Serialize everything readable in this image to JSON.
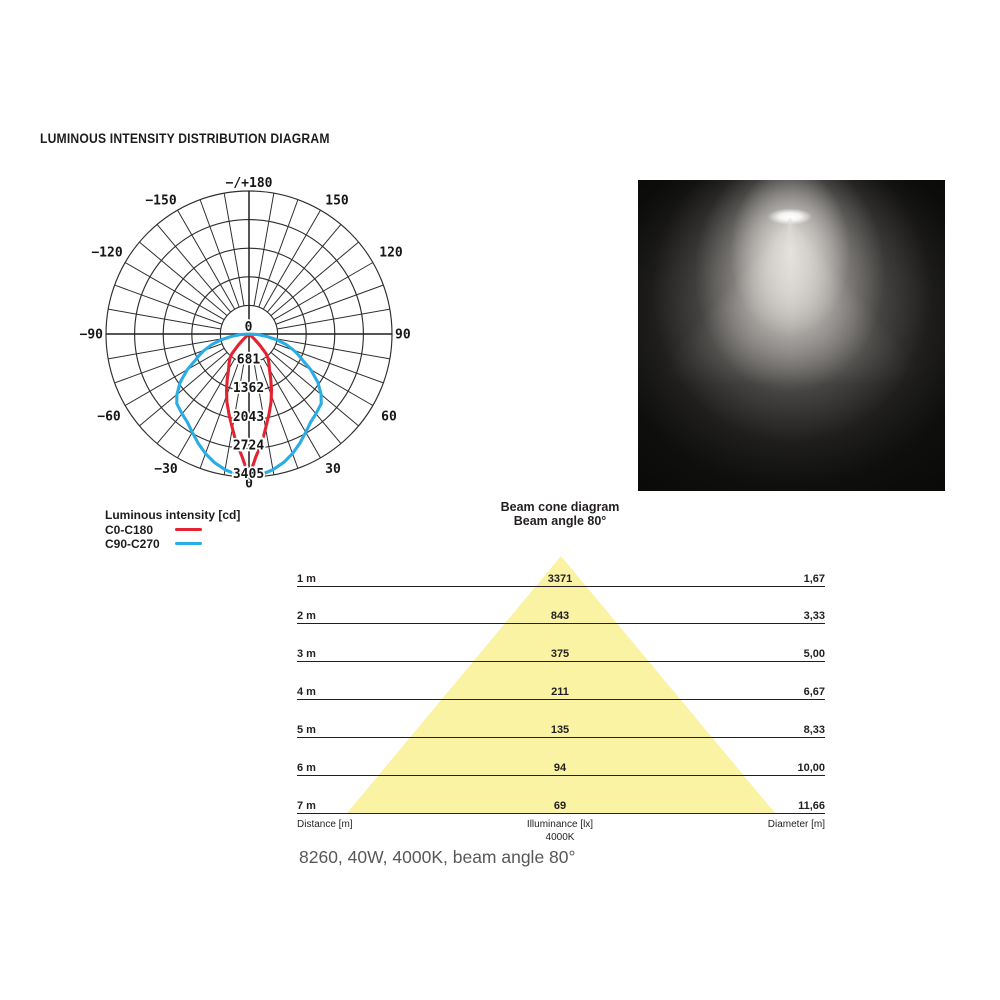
{
  "page": {
    "title": "LUMINOUS INTENSITY DISTRIBUTION DIAGRAM",
    "caption": "8260, 40W, 4000K, beam angle 80°"
  },
  "colors": {
    "red": "#e32330",
    "blue": "#2aade4",
    "cone_yellow": "#faf3a4",
    "grid": "#2e2e2e",
    "text": "#231f20",
    "caption_gray": "#57585a"
  },
  "legend": {
    "title": "Luminous intensity [cd]",
    "items": [
      {
        "label": "C0-C180",
        "color": "#e32330"
      },
      {
        "label": "C90-C270",
        "color": "#2aade4"
      }
    ]
  },
  "photo": {
    "name": "luminaire-beam-photo"
  },
  "chart_data": [
    {
      "type": "polar",
      "title": "LUMINOUS INTENSITY DISTRIBUTION DIAGRAM",
      "units": "cd",
      "max_value": 3405,
      "ring_values": [
        0,
        681,
        1362,
        2043,
        2724,
        3405
      ],
      "angle_step_deg": 10,
      "angle_labels": [
        {
          "angle": 180,
          "text": "−/+180"
        },
        {
          "angle": -150,
          "text": "−150"
        },
        {
          "angle": 150,
          "text": "150"
        },
        {
          "angle": -120,
          "text": "−120"
        },
        {
          "angle": 120,
          "text": "120"
        },
        {
          "angle": -90,
          "text": "−90"
        },
        {
          "angle": 90,
          "text": "90"
        },
        {
          "angle": -60,
          "text": "−60"
        },
        {
          "angle": 60,
          "text": "60"
        },
        {
          "angle": -30,
          "text": "−30"
        },
        {
          "angle": 30,
          "text": "30"
        },
        {
          "angle": 0,
          "text": "0"
        }
      ],
      "series": [
        {
          "name": "C0-C180",
          "color": "#e32330",
          "points": [
            [
              0,
              3405
            ],
            [
              3,
              2950
            ],
            [
              7,
              2570
            ],
            [
              10,
              2280
            ],
            [
              14,
              1970
            ],
            [
              18,
              1700
            ],
            [
              22,
              1430
            ],
            [
              26,
              1180
            ],
            [
              30,
              970
            ],
            [
              34,
              850
            ],
            [
              38,
              740
            ],
            [
              41,
              620
            ],
            [
              44,
              370
            ],
            [
              47,
              180
            ],
            [
              50,
              60
            ],
            [
              52,
              0
            ]
          ]
        },
        {
          "name": "C90-C270",
          "color": "#2aade4",
          "points": [
            [
              0,
              3405
            ],
            [
              5,
              3360
            ],
            [
              10,
              3280
            ],
            [
              15,
              3170
            ],
            [
              20,
              3030
            ],
            [
              25,
              2870
            ],
            [
              30,
              2700
            ],
            [
              35,
              2560
            ],
            [
              40,
              2480
            ],
            [
              46,
              2390
            ],
            [
              50,
              2240
            ],
            [
              55,
              2000
            ],
            [
              60,
              1700
            ],
            [
              64,
              1420
            ],
            [
              67,
              1280
            ],
            [
              70,
              1130
            ],
            [
              74,
              930
            ],
            [
              78,
              690
            ],
            [
              82,
              440
            ],
            [
              86,
              210
            ],
            [
              90,
              0
            ]
          ]
        }
      ]
    },
    {
      "type": "beam_cone_table",
      "title": "Beam cone diagram",
      "subtitle": "Beam angle 80°",
      "columns": [
        "Distance [m]",
        "Illuminance [lx]",
        "Diameter [m]"
      ],
      "illuminance_note": "4000K",
      "rows": [
        {
          "distance": "1 m",
          "illuminance": "3371",
          "diameter": "1,67"
        },
        {
          "distance": "2 m",
          "illuminance": "843",
          "diameter": "3,33"
        },
        {
          "distance": "3 m",
          "illuminance": "375",
          "diameter": "5,00"
        },
        {
          "distance": "4 m",
          "illuminance": "211",
          "diameter": "6,67"
        },
        {
          "distance": "5 m",
          "illuminance": "135",
          "diameter": "8,33"
        },
        {
          "distance": "6 m",
          "illuminance": "94",
          "diameter": "10,00"
        },
        {
          "distance": "7 m",
          "illuminance": "69",
          "diameter": "11,66"
        }
      ]
    }
  ]
}
